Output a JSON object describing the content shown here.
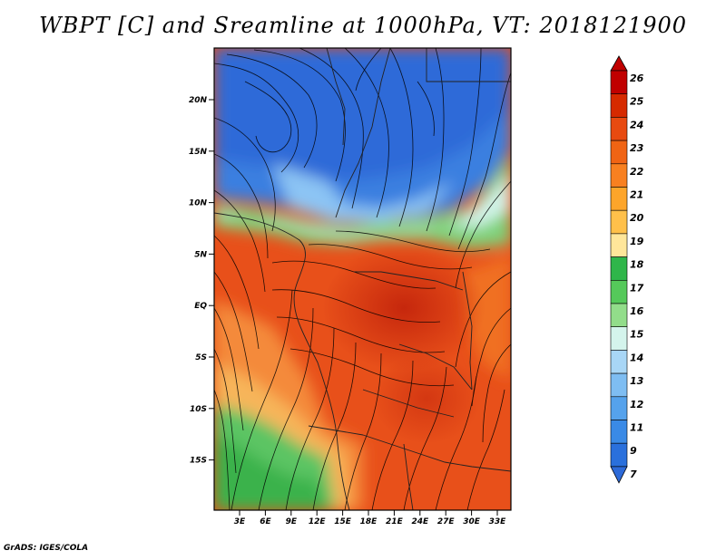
{
  "title": "WBPT [C] and Sreamline at 1000hPa, VT: 2018121900",
  "footer": "GrADS: IGES/COLA",
  "lat_labels": [
    "20N",
    "15N",
    "10N",
    "5N",
    "EQ",
    "5S",
    "10S",
    "15S"
  ],
  "lon_labels": [
    "3E",
    "6E",
    "9E",
    "12E",
    "15E",
    "18E",
    "21E",
    "24E",
    "27E",
    "30E",
    "33E"
  ],
  "colorbar": {
    "labels": [
      "26",
      "25",
      "24",
      "23",
      "22",
      "21",
      "20",
      "19",
      "18",
      "17",
      "16",
      "15",
      "14",
      "13",
      "12",
      "11",
      "9",
      "7"
    ],
    "colors": [
      "#c00000",
      "#d62a00",
      "#e84a10",
      "#f06414",
      "#f88020",
      "#fda52a",
      "#ffc04a",
      "#ffe69a",
      "#2fb64a",
      "#55c95a",
      "#92dd8a",
      "#d4f4ec",
      "#a8d6f6",
      "#7ebdf2",
      "#55a2ec",
      "#3a8ae6",
      "#2a70dc",
      "#2d6ad8"
    ]
  }
}
